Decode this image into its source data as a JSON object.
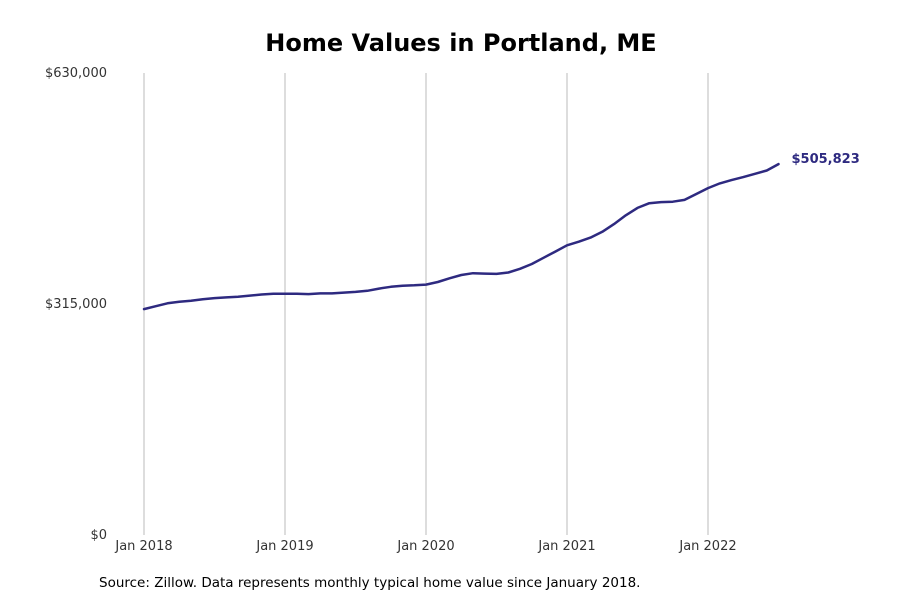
{
  "chart_data": {
    "type": "line",
    "title": "Home Values in Portland, ME",
    "xlabel": "",
    "ylabel": "",
    "x_ticks": [
      "Jan 2018",
      "Jan 2019",
      "Jan 2020",
      "Jan 2021",
      "Jan 2022"
    ],
    "y_ticks": [
      "$0",
      "$315,000",
      "$630,000"
    ],
    "ylim": [
      0,
      630000
    ],
    "xlim": [
      "2018-01",
      "2022-12"
    ],
    "grid": "vertical",
    "line_color": "#2e2a80",
    "grid_color": "#bbbbbb",
    "end_label": "$505,823",
    "series": [
      {
        "x": [
          "2018-01",
          "2018-02",
          "2018-03",
          "2018-04",
          "2018-05",
          "2018-06",
          "2018-07",
          "2018-08",
          "2018-09",
          "2018-10",
          "2018-11",
          "2018-12",
          "2019-01",
          "2019-02",
          "2019-03",
          "2019-04",
          "2019-05",
          "2019-06",
          "2019-07",
          "2019-08",
          "2019-09",
          "2019-10",
          "2019-11",
          "2019-12",
          "2020-01",
          "2020-02",
          "2020-03",
          "2020-04",
          "2020-05",
          "2020-06",
          "2020-07",
          "2020-08",
          "2020-09",
          "2020-10",
          "2020-11",
          "2020-12",
          "2021-01",
          "2021-02",
          "2021-03",
          "2021-04",
          "2021-05",
          "2021-06",
          "2021-07",
          "2021-08",
          "2021-09",
          "2021-10",
          "2021-11",
          "2021-12",
          "2022-01",
          "2022-02",
          "2022-03",
          "2022-04",
          "2022-05",
          "2022-06",
          "2022-07"
        ],
        "values": [
          308000,
          312000,
          316000,
          318000,
          319500,
          321500,
          323000,
          324000,
          325000,
          326500,
          328000,
          329000,
          329000,
          329000,
          328500,
          329500,
          329500,
          330500,
          331500,
          333000,
          336000,
          338500,
          340000,
          340500,
          341500,
          345000,
          350000,
          354500,
          357000,
          356500,
          356000,
          358000,
          363000,
          369500,
          378000,
          386500,
          395000,
          400000,
          405500,
          413500,
          424000,
          436000,
          446000,
          452500,
          454000,
          454500,
          457000,
          465000,
          473000,
          479500,
          484000,
          488000,
          492500,
          497000,
          505823
        ]
      }
    ]
  },
  "source_note": "Source: Zillow. Data represents monthly typical home value since January 2018."
}
